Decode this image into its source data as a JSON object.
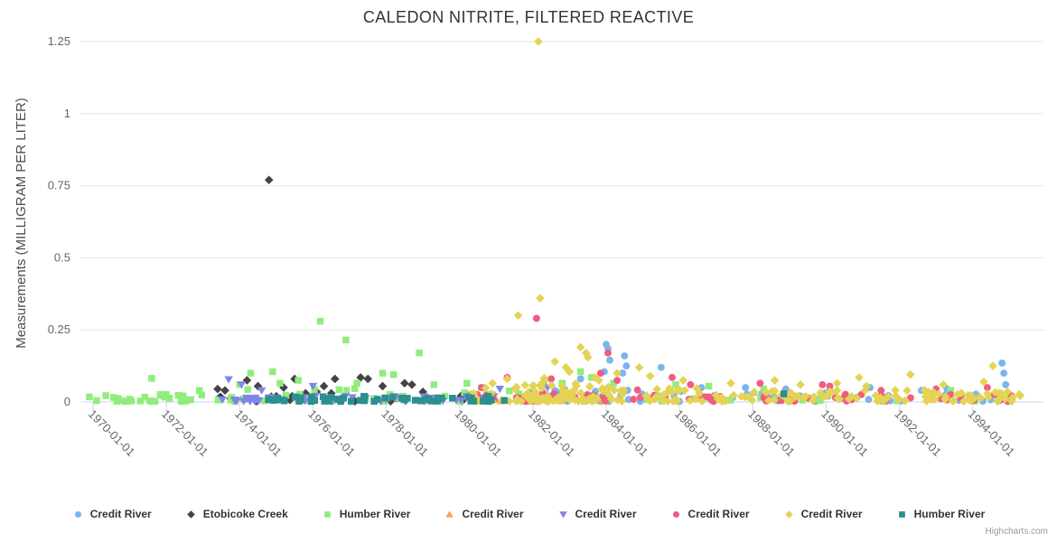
{
  "title": "CALEDON NITRITE, FILTERED REACTIVE",
  "credits_label": "Highcharts.com",
  "chart_data": {
    "type": "scatter",
    "title": "CALEDON NITRITE, FILTERED REACTIVE",
    "xlabel": "",
    "ylabel": "Measurements (MILLIGRAM PER LITER)",
    "ylim": [
      0,
      1.25
    ],
    "y_ticks": [
      0,
      0.25,
      0.5,
      0.75,
      1,
      1.25
    ],
    "x_tick_years": [
      1970,
      1972,
      1974,
      1976,
      1978,
      1980,
      1982,
      1984,
      1986,
      1988,
      1990,
      1992,
      1994
    ],
    "x_tick_labels": [
      "1970-01-01",
      "1972-01-01",
      "1974-01-01",
      "1976-01-01",
      "1978-01-01",
      "1980-01-01",
      "1982-01-01",
      "1984-01-01",
      "1986-01-01",
      "1988-01-01",
      "1990-01-01",
      "1992-01-01",
      "1994-01-01"
    ],
    "x_range": [
      1969.68,
      1995.93
    ],
    "grid": true,
    "legend_position": "bottom",
    "colors": {
      "grid": "#e6e6e6",
      "axis_line": "#ccd6eb",
      "tick_label": "#666666",
      "title": "#333333",
      "background": "#ffffff"
    },
    "seed": 42,
    "series": [
      {
        "name": "Credit River",
        "marker": "circle",
        "color": "#7cb5ec",
        "points": [
          [
            1982.3,
            0.07
          ],
          [
            1983.3,
            0.08
          ],
          [
            1983.95,
            0.105
          ],
          [
            1984.0,
            0.2
          ],
          [
            1984.05,
            0.185
          ],
          [
            1984.1,
            0.145
          ],
          [
            1984.45,
            0.1
          ],
          [
            1984.5,
            0.16
          ],
          [
            1984.55,
            0.125
          ],
          [
            1985.5,
            0.12
          ],
          [
            1986.6,
            0.05
          ],
          [
            1987.8,
            0.05
          ],
          [
            1988.9,
            0.045
          ],
          [
            1990.1,
            0.04
          ],
          [
            1991.2,
            0.05
          ],
          [
            1992.6,
            0.04
          ],
          [
            1993.3,
            0.045
          ],
          [
            1994.8,
            0.135
          ],
          [
            1994.85,
            0.1
          ],
          [
            1994.9,
            0.06
          ]
        ],
        "bands": [
          {
            "x0": 1982.0,
            "x1": 1985.5,
            "ymax": 0.05,
            "n": 26
          },
          {
            "x0": 1985.5,
            "x1": 1990.0,
            "ymax": 0.035,
            "n": 20
          },
          {
            "x0": 1990.0,
            "x1": 1995.2,
            "ymax": 0.03,
            "n": 18
          }
        ]
      },
      {
        "name": "Etobicoke Creek",
        "marker": "diamond",
        "color": "#434348",
        "points": [
          [
            1973.4,
            0.045
          ],
          [
            1973.6,
            0.04
          ],
          [
            1974.2,
            0.075
          ],
          [
            1974.5,
            0.055
          ],
          [
            1974.8,
            0.77
          ],
          [
            1975.0,
            0.02
          ],
          [
            1975.2,
            0.05
          ],
          [
            1975.5,
            0.08
          ],
          [
            1975.8,
            0.03
          ],
          [
            1976.1,
            0.035
          ],
          [
            1976.3,
            0.055
          ],
          [
            1976.5,
            0.03
          ],
          [
            1976.6,
            0.08
          ],
          [
            1977.3,
            0.085
          ],
          [
            1977.5,
            0.08
          ],
          [
            1977.9,
            0.055
          ],
          [
            1978.5,
            0.065
          ],
          [
            1978.7,
            0.06
          ],
          [
            1979.0,
            0.035
          ],
          [
            1980.3,
            0.025
          ]
        ],
        "bands": [
          {
            "x0": 1973.3,
            "x1": 1980.4,
            "ymax": 0.02,
            "n": 16
          }
        ]
      },
      {
        "name": "Humber River",
        "marker": "square",
        "color": "#90ed7d",
        "points": [
          [
            1971.6,
            0.082
          ],
          [
            1972.9,
            0.04
          ],
          [
            1974.0,
            0.06
          ],
          [
            1974.3,
            0.1
          ],
          [
            1974.9,
            0.105
          ],
          [
            1975.1,
            0.065
          ],
          [
            1975.6,
            0.075
          ],
          [
            1976.2,
            0.28
          ],
          [
            1976.9,
            0.215
          ],
          [
            1977.2,
            0.065
          ],
          [
            1977.9,
            0.1
          ],
          [
            1978.2,
            0.095
          ],
          [
            1978.9,
            0.17
          ],
          [
            1979.3,
            0.06
          ],
          [
            1980.2,
            0.065
          ],
          [
            1980.6,
            0.05
          ],
          [
            1982.8,
            0.065
          ],
          [
            1983.3,
            0.105
          ],
          [
            1983.6,
            0.085
          ],
          [
            1984.2,
            0.065
          ],
          [
            1985.9,
            0.06
          ],
          [
            1986.8,
            0.055
          ],
          [
            1988.3,
            0.045
          ],
          [
            1993.4,
            0.04
          ]
        ],
        "bands": [
          {
            "x0": 1969.8,
            "x1": 1973.2,
            "ymax": 0.025,
            "n": 30
          },
          {
            "x0": 1973.2,
            "x1": 1980.5,
            "ymax": 0.045,
            "n": 38
          },
          {
            "x0": 1980.5,
            "x1": 1986.0,
            "ymax": 0.04,
            "n": 16
          },
          {
            "x0": 1986.0,
            "x1": 1995.0,
            "ymax": 0.025,
            "n": 13
          }
        ]
      },
      {
        "name": "Credit River",
        "marker": "triangle",
        "color": "#f7a35c",
        "points": [],
        "bands": [
          {
            "x0": 1980.3,
            "x1": 1984.5,
            "ymax": 0.02,
            "n": 12
          }
        ]
      },
      {
        "name": "Credit River",
        "marker": "triangle-down",
        "color": "#8085e9",
        "points": [
          [
            1973.7,
            0.078
          ],
          [
            1974.05,
            0.06
          ],
          [
            1974.6,
            0.04
          ],
          [
            1976.0,
            0.055
          ],
          [
            1981.1,
            0.045
          ],
          [
            1982.4,
            0.05
          ]
        ],
        "bands": [
          {
            "x0": 1973.5,
            "x1": 1982.5,
            "ymax": 0.018,
            "n": 58
          }
        ]
      },
      {
        "name": "Credit River",
        "marker": "circle",
        "color": "#f15c80",
        "points": [
          [
            1980.6,
            0.05
          ],
          [
            1981.3,
            0.085
          ],
          [
            1982.1,
            0.29
          ],
          [
            1982.5,
            0.08
          ],
          [
            1983.85,
            0.1
          ],
          [
            1984.05,
            0.17
          ],
          [
            1984.3,
            0.075
          ],
          [
            1985.8,
            0.085
          ],
          [
            1986.3,
            0.06
          ],
          [
            1988.2,
            0.065
          ],
          [
            1989.9,
            0.06
          ],
          [
            1990.1,
            0.055
          ],
          [
            1991.5,
            0.04
          ],
          [
            1993.0,
            0.045
          ],
          [
            1994.4,
            0.05
          ]
        ],
        "bands": [
          {
            "x0": 1980.2,
            "x1": 1985.0,
            "ymax": 0.04,
            "n": 28
          },
          {
            "x0": 1985.0,
            "x1": 1990.0,
            "ymax": 0.03,
            "n": 24
          },
          {
            "x0": 1990.0,
            "x1": 1995.2,
            "ymax": 0.025,
            "n": 20
          }
        ]
      },
      {
        "name": "Credit River",
        "marker": "diamond",
        "color": "#e4d354",
        "points": [
          [
            1980.9,
            0.065
          ],
          [
            1981.3,
            0.08
          ],
          [
            1981.6,
            0.3
          ],
          [
            1982.15,
            1.25
          ],
          [
            1982.2,
            0.36
          ],
          [
            1982.6,
            0.14
          ],
          [
            1982.9,
            0.12
          ],
          [
            1983.0,
            0.105
          ],
          [
            1983.3,
            0.19
          ],
          [
            1983.45,
            0.17
          ],
          [
            1983.5,
            0.155
          ],
          [
            1983.8,
            0.075
          ],
          [
            1984.3,
            0.1
          ],
          [
            1984.9,
            0.12
          ],
          [
            1985.2,
            0.09
          ],
          [
            1986.1,
            0.075
          ],
          [
            1987.4,
            0.065
          ],
          [
            1988.6,
            0.075
          ],
          [
            1989.3,
            0.06
          ],
          [
            1990.3,
            0.065
          ],
          [
            1990.9,
            0.085
          ],
          [
            1991.1,
            0.055
          ],
          [
            1992.3,
            0.095
          ],
          [
            1993.2,
            0.06
          ],
          [
            1994.3,
            0.07
          ],
          [
            1994.55,
            0.125
          ]
        ],
        "bands": [
          {
            "x0": 1980.3,
            "x1": 1985.5,
            "ymax": 0.06,
            "n": 65
          },
          {
            "x0": 1982.0,
            "x1": 1984.2,
            "ymax": 0.09,
            "n": 30
          },
          {
            "x0": 1985.5,
            "x1": 1990.5,
            "ymax": 0.045,
            "n": 58
          },
          {
            "x0": 1990.5,
            "x1": 1995.3,
            "ymax": 0.04,
            "n": 52
          }
        ]
      },
      {
        "name": "Humber River",
        "marker": "square",
        "color": "#2b908f",
        "points": [
          [
            1988.85,
            0.028
          ]
        ],
        "bands": [
          {
            "x0": 1974.6,
            "x1": 1981.4,
            "ymax": 0.018,
            "n": 58
          }
        ]
      }
    ]
  }
}
